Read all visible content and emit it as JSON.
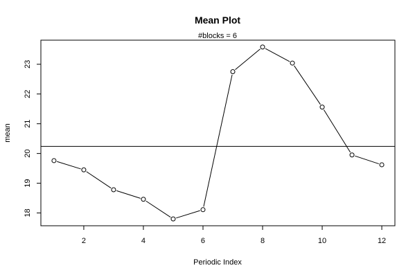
{
  "chart_data": {
    "type": "line",
    "title": "Mean Plot",
    "subtitle": "#blocks =  6",
    "xlabel": "Periodic Index",
    "ylabel": "mean",
    "x": [
      1,
      2,
      3,
      4,
      5,
      6,
      7,
      8,
      9,
      10,
      11,
      12
    ],
    "series": [
      {
        "values": [
          19.76,
          19.45,
          18.78,
          18.46,
          17.8,
          18.11,
          22.75,
          23.58,
          23.04,
          21.56,
          19.95,
          19.62
        ],
        "marker": "open-circle",
        "color": "#000000"
      }
    ],
    "reference_line": {
      "value": 20.24,
      "color": "#000000"
    },
    "x_ticks": [
      2,
      4,
      6,
      8,
      10,
      12
    ],
    "y_ticks": [
      18,
      19,
      20,
      21,
      22,
      23
    ],
    "xlim": [
      0.56,
      12.44
    ],
    "ylim": [
      17.57,
      23.81
    ],
    "grid": false,
    "legend": "none"
  }
}
